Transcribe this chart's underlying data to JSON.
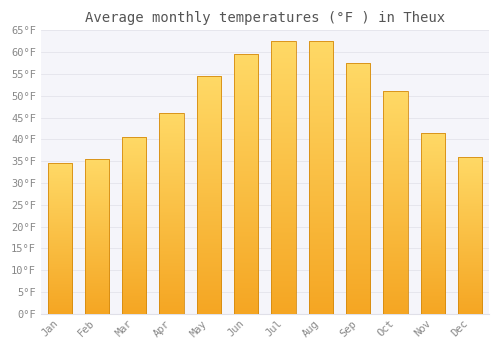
{
  "title": "Average monthly temperatures (°F ) in Theux",
  "months": [
    "Jan",
    "Feb",
    "Mar",
    "Apr",
    "May",
    "Jun",
    "Jul",
    "Aug",
    "Sep",
    "Oct",
    "Nov",
    "Dec"
  ],
  "values": [
    34.5,
    35.5,
    40.5,
    46.0,
    54.5,
    59.5,
    62.5,
    62.5,
    57.5,
    51.0,
    41.5,
    36.0
  ],
  "bar_color_top": "#FFD966",
  "bar_color_bottom": "#F5A623",
  "bar_edge_color": "#D48A10",
  "background_color": "#FFFFFF",
  "plot_bg_color": "#F5F5FA",
  "grid_color": "#E0E0E8",
  "ylim": [
    0,
    65
  ],
  "yticks": [
    0,
    5,
    10,
    15,
    20,
    25,
    30,
    35,
    40,
    45,
    50,
    55,
    60,
    65
  ],
  "title_fontsize": 10,
  "tick_fontsize": 7.5,
  "tick_font_color": "#888888",
  "bar_width": 0.65
}
